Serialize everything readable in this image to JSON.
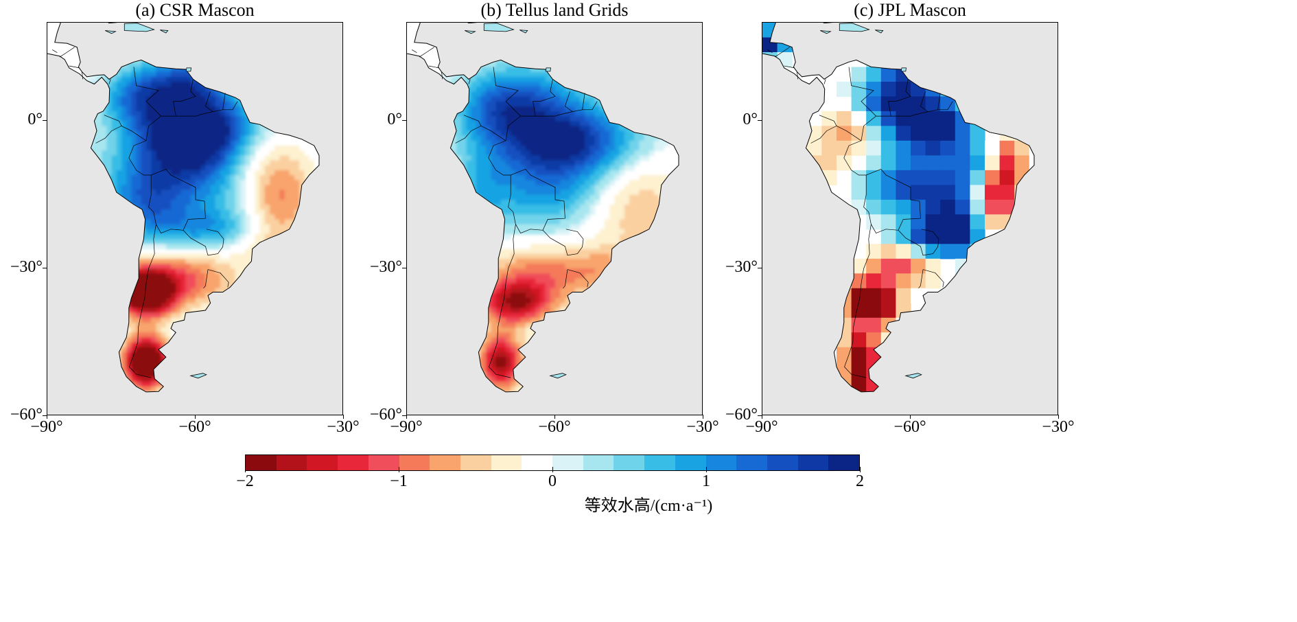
{
  "panels": [
    {
      "title": "(a) CSR Mascon",
      "style": "smooth",
      "pattern": "csr"
    },
    {
      "title": "(b) Tellus land Grids",
      "style": "smooth",
      "pattern": "tellus"
    },
    {
      "title": "(c) JPL Mascon",
      "style": "blocky",
      "pattern": "jpl"
    }
  ],
  "axes": {
    "x_ticks": [
      "−90°",
      "−60°",
      "−30°"
    ],
    "y_ticks": [
      "0°",
      "−30°",
      "−60°"
    ],
    "lon_range": [
      -90,
      -30
    ],
    "lat_range": [
      -60,
      20
    ]
  },
  "colorbar": {
    "ticks": [
      "−2",
      "−1",
      "0",
      "1",
      "2"
    ],
    "range": [
      -2,
      2
    ],
    "label": "等效水高/(cm·a⁻¹)",
    "colors": [
      "#8b0a0e",
      "#b3121a",
      "#d11724",
      "#e8283a",
      "#f04e5a",
      "#f47a5a",
      "#f8a46c",
      "#fbd0a0",
      "#fdf1d0",
      "#ffffff",
      "#d9f3f7",
      "#a8e6ef",
      "#6fd3ea",
      "#38bde6",
      "#19a3e3",
      "#1686de",
      "#1769d4",
      "#1450bf",
      "#0f3aa6",
      "#0a2585"
    ]
  },
  "map_colors": {
    "ocean": "#e6e6e6",
    "land": "#ffffff",
    "border": "#000000"
  }
}
